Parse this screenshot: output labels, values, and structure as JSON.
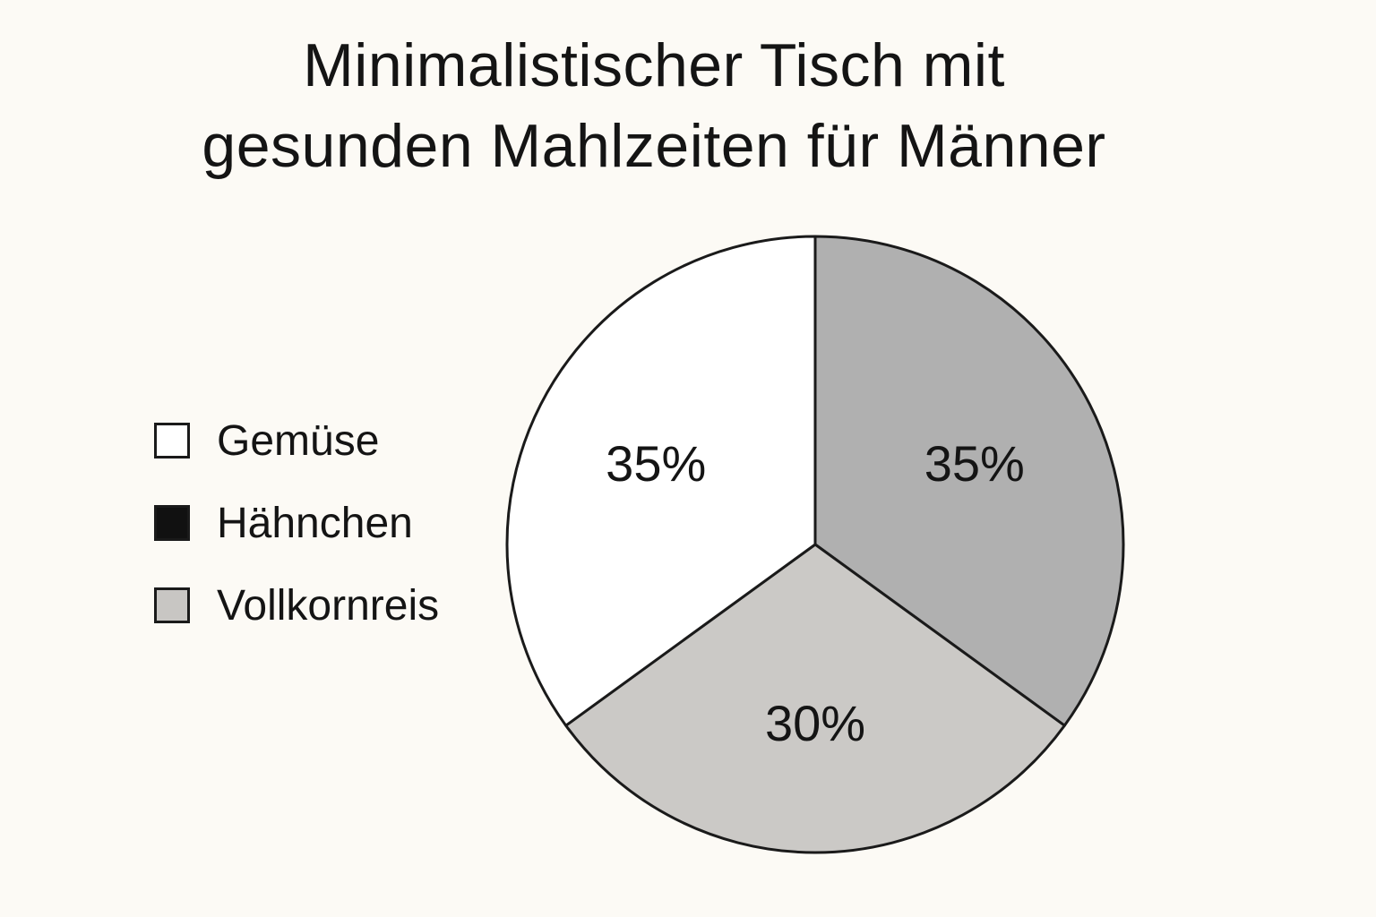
{
  "chart_data": {
    "type": "pie",
    "title": "Minimalistischer Tisch mit gesunden Mahlzeiten für Männer",
    "title_lines": [
      "Minimalistischer Tisch mit",
      "gesunden Mahlzeiten für Männer"
    ],
    "legend_position": "left",
    "legend": [
      {
        "name": "Gemüse",
        "color": "#ffffff"
      },
      {
        "name": "Hähnchen",
        "color": "#111111"
      },
      {
        "name": "Vollkornreis",
        "color": "#c8c6c3"
      }
    ],
    "slices": [
      {
        "value": 35,
        "label": "35%",
        "color": "#b0b0b0"
      },
      {
        "value": 30,
        "label": "30%",
        "color": "#cbc9c6"
      },
      {
        "value": 35,
        "label": "35%",
        "color": "#ffffff"
      }
    ],
    "start_angle_deg": 0,
    "direction": "clockwise"
  }
}
